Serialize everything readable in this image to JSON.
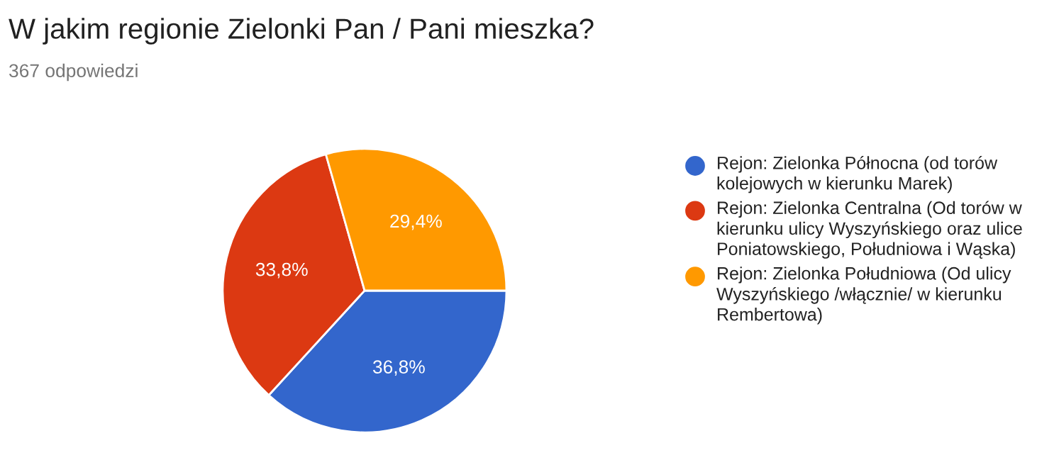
{
  "chart_data": {
    "type": "pie",
    "title": "W jakim regionie Zielonki Pan / Pani mieszka?",
    "subtitle": "367 odpowiedzi",
    "categories": [
      "Rejon: Zielonka Północna (od torów kolejowych w kierunku Marek)",
      "Rejon: Zielonka Centralna (Od torów w kierunku ulicy Wyszyńskiego oraz ulice Poniatowskiego, Południowa i Wąska)",
      "Rejon: Zielonka Południowa (Od ulicy Wyszyńskiego /włącznie/ w kierunku Rembertowa)"
    ],
    "values": [
      36.8,
      33.8,
      29.4
    ],
    "value_labels": [
      "36,8%",
      "33,8%",
      "29,4%"
    ],
    "colors": [
      "#3366cc",
      "#dc3912",
      "#ff9900"
    ],
    "legend": "right"
  }
}
